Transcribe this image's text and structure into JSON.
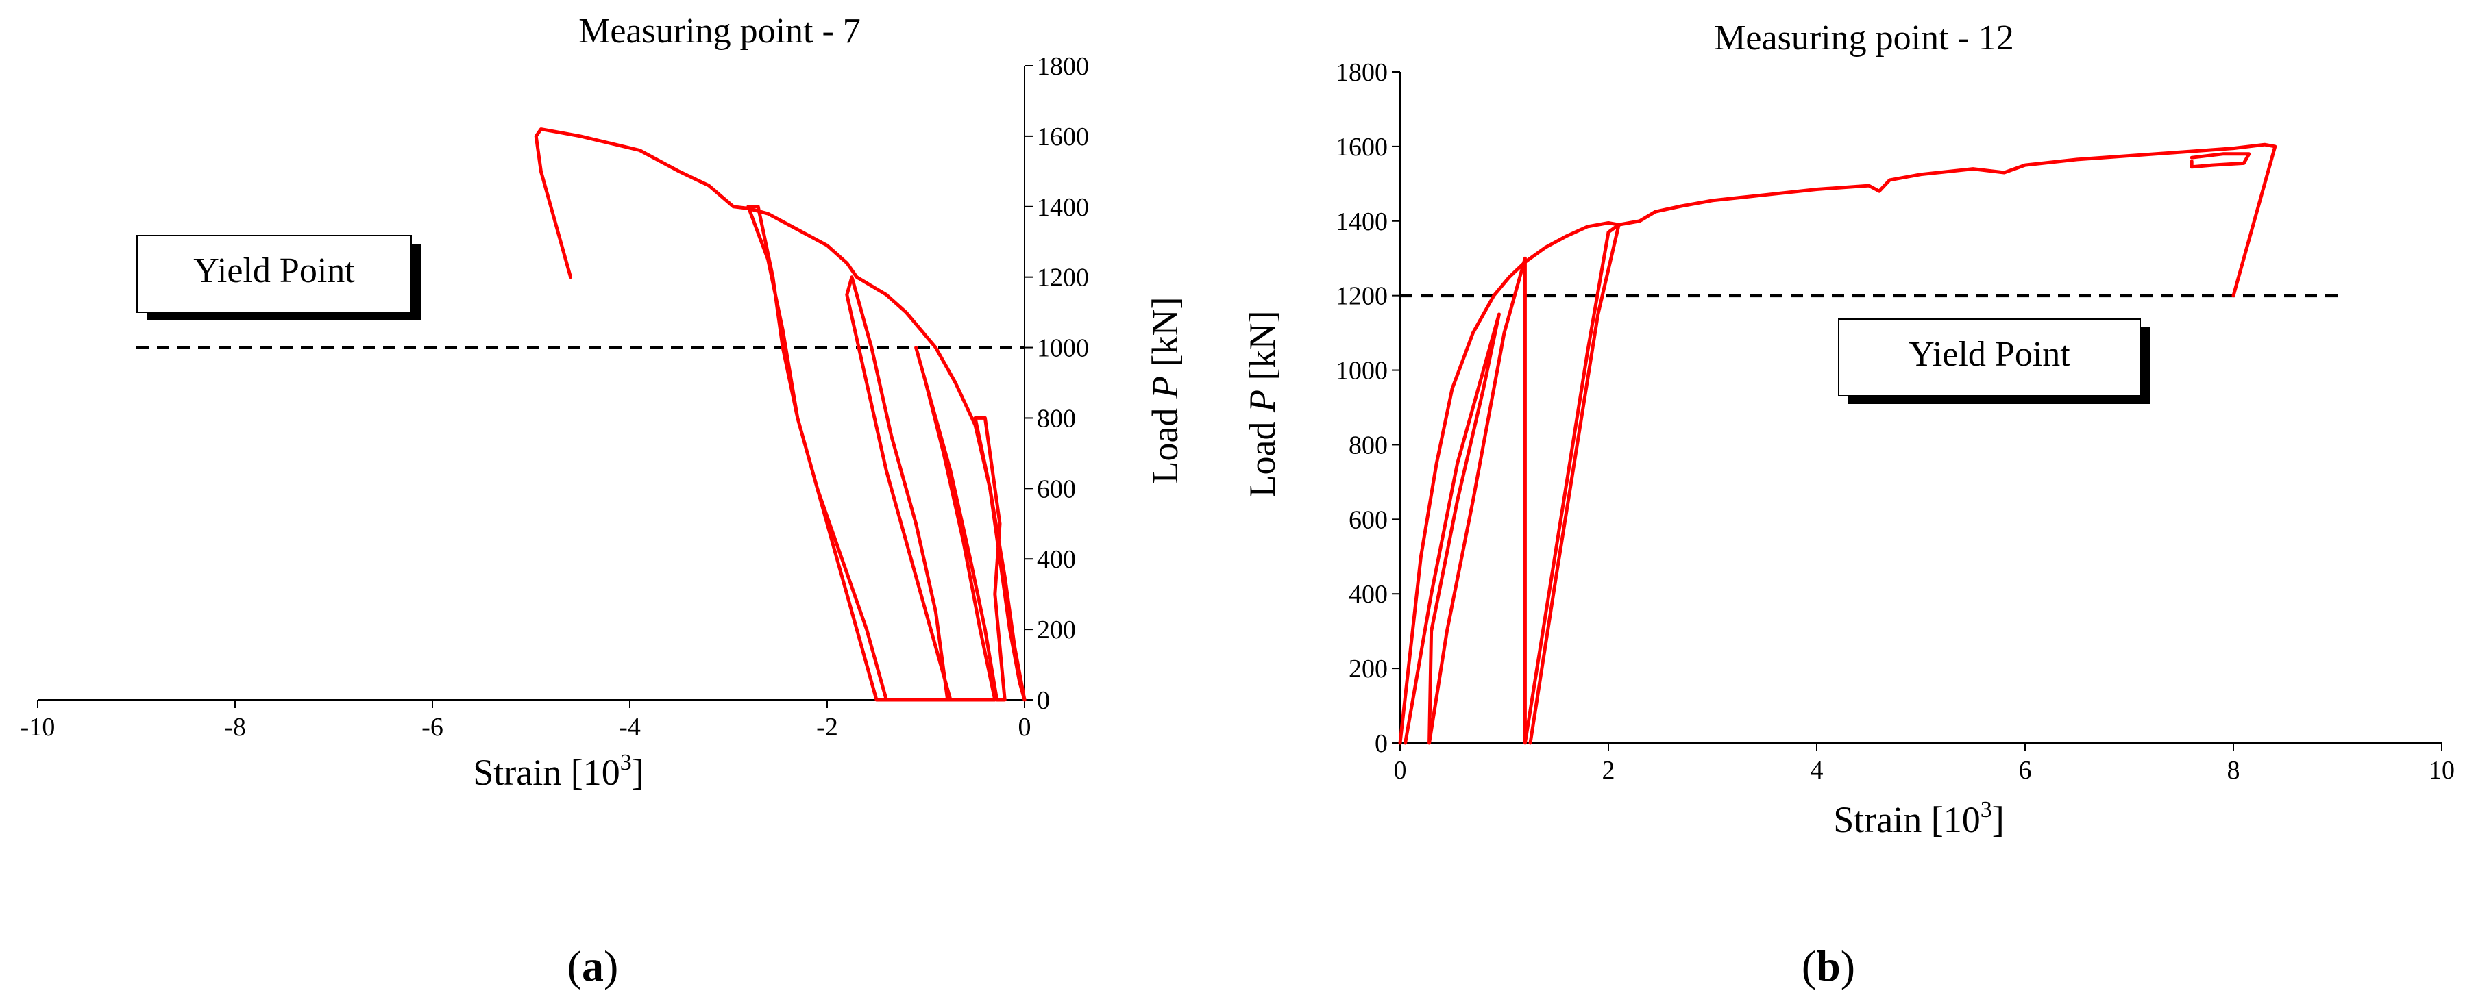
{
  "figure_caption": {
    "panel_a": "(a)",
    "panel_b": "(b)",
    "panel_a_letter": "a",
    "panel_b_letter": "b"
  },
  "chart_data": [
    {
      "id": "a",
      "type": "line",
      "title": "Measuring point - 7",
      "xlabel_main": "Strain [10",
      "xlabel_sup": "3",
      "xlabel_end": "]",
      "ylabel_main": "Load ",
      "ylabel_italic": "P",
      "ylabel_end": " [kN]",
      "xlim": [
        -10,
        0
      ],
      "ylim": [
        0,
        1800
      ],
      "xticks": [
        -10,
        -8,
        -6,
        -4,
        -2,
        0
      ],
      "yticks": [
        0,
        200,
        400,
        600,
        800,
        1000,
        1200,
        1400,
        1600,
        1800
      ],
      "yaxis_side": "right",
      "grid": false,
      "series_color": "#ff0000",
      "yield_line": {
        "y": 1000,
        "x_range": [
          -9,
          0
        ],
        "label": "Yield Point"
      },
      "series": [
        {
          "name": "load-strain curve",
          "points": [
            [
              -1.4,
              0
            ],
            [
              -1.6,
              200
            ],
            [
              -1.85,
              400
            ],
            [
              -2.1,
              600
            ],
            [
              -2.3,
              800
            ],
            [
              -2.45,
              1000
            ],
            [
              -2.55,
              1200
            ],
            [
              -2.7,
              1400
            ],
            [
              -2.8,
              1400
            ],
            [
              -2.6,
              1250
            ],
            [
              -2.45,
              1050
            ],
            [
              -2.3,
              800
            ],
            [
              -2.05,
              550
            ],
            [
              -1.8,
              300
            ],
            [
              -1.5,
              0
            ],
            [
              -0.75,
              0
            ],
            [
              -0.95,
              200
            ],
            [
              -1.15,
              400
            ],
            [
              -1.4,
              650
            ],
            [
              -1.6,
              900
            ],
            [
              -1.8,
              1150
            ],
            [
              -1.75,
              1200
            ],
            [
              -1.55,
              1000
            ],
            [
              -1.35,
              750
            ],
            [
              -1.1,
              500
            ],
            [
              -0.9,
              250
            ],
            [
              -0.78,
              0
            ],
            [
              -0.3,
              0
            ],
            [
              -0.45,
              200
            ],
            [
              -0.62,
              450
            ],
            [
              -0.82,
              700
            ],
            [
              -1.0,
              900
            ],
            [
              -1.1,
              1000
            ],
            [
              -0.95,
              850
            ],
            [
              -0.75,
              650
            ],
            [
              -0.55,
              400
            ],
            [
              -0.4,
              200
            ],
            [
              -0.28,
              0
            ],
            [
              -0.2,
              0
            ],
            [
              -0.3,
              300
            ],
            [
              -0.25,
              500
            ],
            [
              -0.35,
              700
            ],
            [
              -0.4,
              800
            ],
            [
              -0.5,
              800
            ],
            [
              -0.35,
              600
            ],
            [
              -0.25,
              400
            ],
            [
              -0.15,
              200
            ],
            [
              -0.05,
              50
            ],
            [
              0,
              0
            ]
          ]
        },
        {
          "name": "envelope",
          "points": [
            [
              -4.6,
              1200
            ],
            [
              -4.75,
              1350
            ],
            [
              -4.9,
              1500
            ],
            [
              -4.95,
              1600
            ],
            [
              -4.9,
              1620
            ],
            [
              -4.7,
              1610
            ],
            [
              -4.5,
              1600
            ],
            [
              -4.2,
              1580
            ],
            [
              -3.9,
              1560
            ],
            [
              -3.7,
              1530
            ],
            [
              -3.5,
              1500
            ],
            [
              -3.2,
              1460
            ],
            [
              -2.95,
              1400
            ],
            [
              -2.8,
              1395
            ],
            [
              -2.6,
              1380
            ],
            [
              -2.4,
              1350
            ],
            [
              -2.2,
              1320
            ],
            [
              -2.0,
              1290
            ],
            [
              -1.8,
              1240
            ],
            [
              -1.7,
              1200
            ],
            [
              -1.4,
              1150
            ],
            [
              -1.2,
              1100
            ],
            [
              -0.9,
              1000
            ],
            [
              -0.7,
              900
            ],
            [
              -0.5,
              780
            ],
            [
              -0.35,
              600
            ],
            [
              -0.2,
              350
            ],
            [
              -0.1,
              150
            ],
            [
              0,
              0
            ]
          ]
        }
      ]
    },
    {
      "id": "b",
      "type": "line",
      "title": "Measuring point - 12",
      "xlabel_main": "Strain [10",
      "xlabel_sup": "3",
      "xlabel_end": "]",
      "ylabel_main": "Load ",
      "ylabel_italic": "P",
      "ylabel_end": " [kN]",
      "xlim": [
        0,
        10
      ],
      "ylim": [
        0,
        1800
      ],
      "xticks": [
        0,
        2,
        4,
        6,
        8,
        10
      ],
      "yticks": [
        0,
        200,
        400,
        600,
        800,
        1000,
        1200,
        1400,
        1600,
        1800
      ],
      "yaxis_side": "left",
      "grid": false,
      "series_color": "#ff0000",
      "yield_line": {
        "y": 1200,
        "x_range": [
          0,
          9
        ],
        "label": "Yield Point"
      },
      "series": [
        {
          "name": "load-strain curve",
          "points": [
            [
              0,
              0
            ],
            [
              0.1,
              250
            ],
            [
              0.2,
              500
            ],
            [
              0.35,
              750
            ],
            [
              0.5,
              950
            ],
            [
              0.7,
              1100
            ],
            [
              0.9,
              1200
            ],
            [
              1.05,
              1250
            ],
            [
              1.2,
              1290
            ],
            [
              1.4,
              1330
            ],
            [
              1.6,
              1360
            ],
            [
              1.8,
              1385
            ],
            [
              2.0,
              1395
            ],
            [
              2.1,
              1390
            ],
            [
              2.2,
              1395
            ],
            [
              2.3,
              1400
            ],
            [
              2.45,
              1425
            ],
            [
              2.7,
              1440
            ],
            [
              3.0,
              1455
            ],
            [
              3.5,
              1470
            ],
            [
              4.0,
              1485
            ],
            [
              4.5,
              1495
            ],
            [
              4.6,
              1480
            ],
            [
              4.7,
              1510
            ],
            [
              5.0,
              1525
            ],
            [
              5.5,
              1540
            ],
            [
              5.8,
              1530
            ],
            [
              6.0,
              1550
            ],
            [
              6.5,
              1565
            ],
            [
              7.0,
              1575
            ],
            [
              7.5,
              1585
            ],
            [
              8.0,
              1595
            ],
            [
              8.3,
              1605
            ],
            [
              8.4,
              1600
            ],
            [
              8.3,
              1500
            ],
            [
              8.15,
              1350
            ],
            [
              8.0,
              1200
            ]
          ]
        },
        {
          "name": "unload-reload loops",
          "points": [
            [
              0.05,
              0
            ],
            [
              0.3,
              400
            ],
            [
              0.55,
              750
            ],
            [
              0.8,
              1000
            ],
            [
              0.95,
              1150
            ],
            [
              0.8,
              950
            ],
            [
              0.55,
              650
            ],
            [
              0.3,
              300
            ],
            [
              0.28,
              0
            ],
            [
              0.45,
              300
            ],
            [
              0.7,
              650
            ],
            [
              1.0,
              1100
            ],
            [
              1.2,
              1300
            ],
            [
              1.2,
              0
            ],
            [
              1.4,
              350
            ],
            [
              1.6,
              700
            ],
            [
              1.8,
              1050
            ],
            [
              2.0,
              1370
            ],
            [
              2.1,
              1390
            ],
            [
              1.9,
              1150
            ],
            [
              1.7,
              800
            ],
            [
              1.5,
              450
            ],
            [
              1.25,
              0
            ]
          ]
        },
        {
          "name": "upper small loop",
          "points": [
            [
              7.6,
              1560
            ],
            [
              7.6,
              1545
            ],
            [
              7.8,
              1550
            ],
            [
              8.1,
              1555
            ],
            [
              8.15,
              1580
            ],
            [
              7.9,
              1580
            ],
            [
              7.6,
              1570
            ]
          ]
        }
      ]
    }
  ]
}
